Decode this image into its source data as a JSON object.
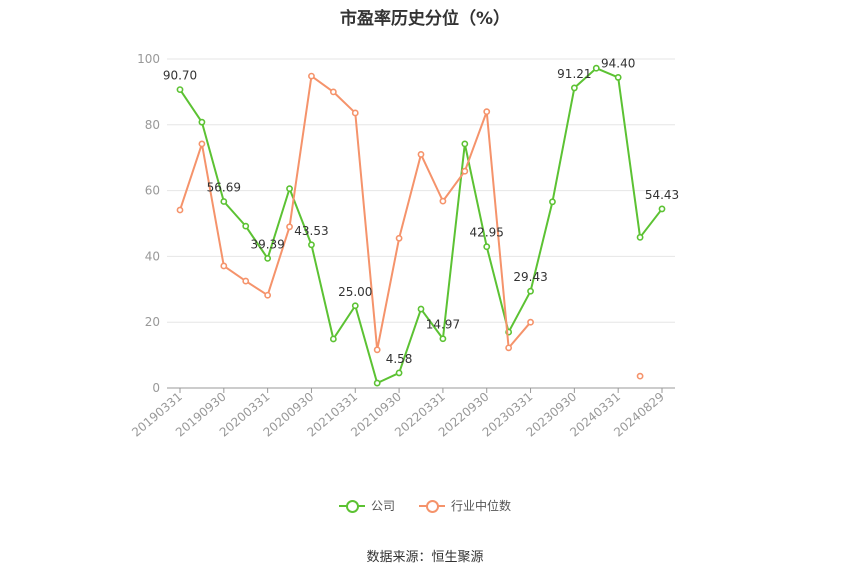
{
  "chart_data": {
    "type": "line",
    "title": "市盈率历史分位（%）",
    "source": "数据来源：恒生聚源",
    "ylim": [
      0,
      100
    ],
    "yticks": [
      0,
      20,
      40,
      60,
      80,
      100
    ],
    "x_tick_labels": [
      "20190331",
      "20190930",
      "20200331",
      "20200930",
      "20210331",
      "20210930",
      "20220331",
      "20220930",
      "20230331",
      "20230930",
      "20240331",
      "20240829"
    ],
    "x": [
      "20190331",
      "20190630",
      "20190930",
      "20191231",
      "20200331",
      "20200630",
      "20200930",
      "20201231",
      "20210331",
      "20210630",
      "20210930",
      "20211231",
      "20220331",
      "20220630",
      "20220930",
      "20221231",
      "20230331",
      "20230630",
      "20230930",
      "20231231",
      "20240331",
      "20240630",
      "20240829"
    ],
    "series": [
      {
        "name": "公司",
        "color": "#5cc233",
        "values": [
          90.7,
          80.8,
          56.69,
          49.2,
          39.39,
          60.6,
          43.53,
          14.9,
          25.0,
          1.5,
          4.58,
          24.0,
          14.97,
          74.2,
          42.95,
          17.0,
          29.43,
          56.6,
          91.21,
          97.2,
          94.4,
          45.8,
          54.43
        ],
        "labels": {
          "0": "90.70",
          "2": "56.69",
          "4": "39.39",
          "6": "43.53",
          "8": "25.00",
          "10": "4.58",
          "12": "14.97",
          "14": "42.95",
          "16": "29.43",
          "18": "91.21",
          "20": "94.40",
          "22": "54.43"
        }
      },
      {
        "name": "行业中位数",
        "color": "#f5936b",
        "values": [
          54.1,
          74.2,
          37.1,
          32.5,
          28.2,
          49.0,
          94.8,
          90.0,
          83.6,
          11.6,
          45.5,
          71.0,
          56.8,
          65.9,
          84.0,
          12.2,
          20.0,
          null,
          null,
          null,
          null,
          3.6,
          null
        ]
      }
    ]
  }
}
